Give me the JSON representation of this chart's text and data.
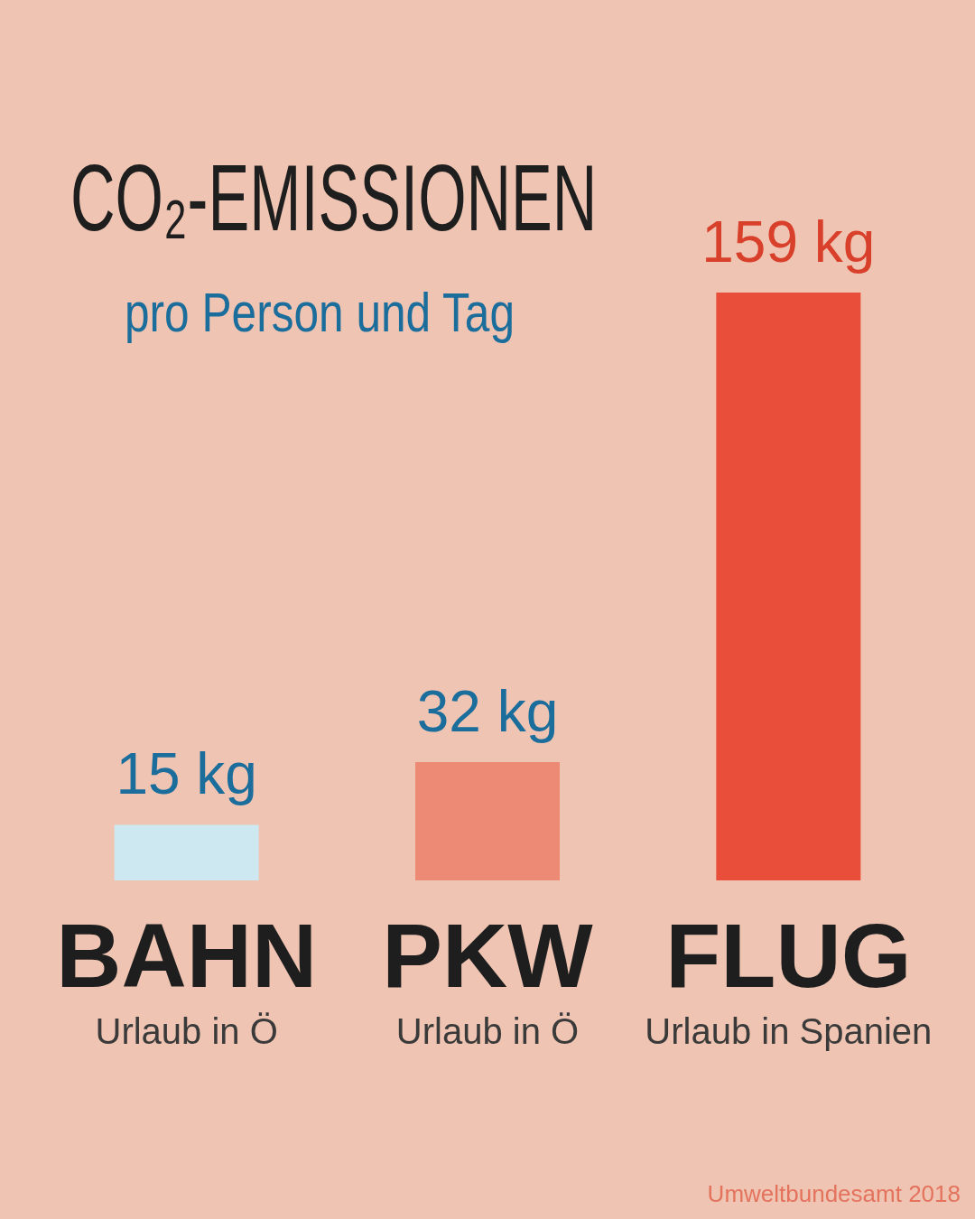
{
  "chart_data": {
    "type": "bar",
    "title": "CO₂-EMISSIONEN",
    "subtitle": "pro Person und Tag",
    "categories": [
      "BAHN",
      "PKW",
      "FLUG"
    ],
    "values": [
      15,
      32,
      159
    ],
    "colors": [
      "#cde8f0",
      "#ec8a75",
      "#e84e3a"
    ],
    "value_labels": [
      "15 kg",
      "32 kg",
      "159 kg"
    ],
    "annotations": [
      "Urlaub in Ö",
      "Urlaub in Ö",
      "Urlaub in Spanien",
      "Umweltbundesamt 2018"
    ],
    "grid": false,
    "legend": false,
    "tick_labels": "x"
  }
}
